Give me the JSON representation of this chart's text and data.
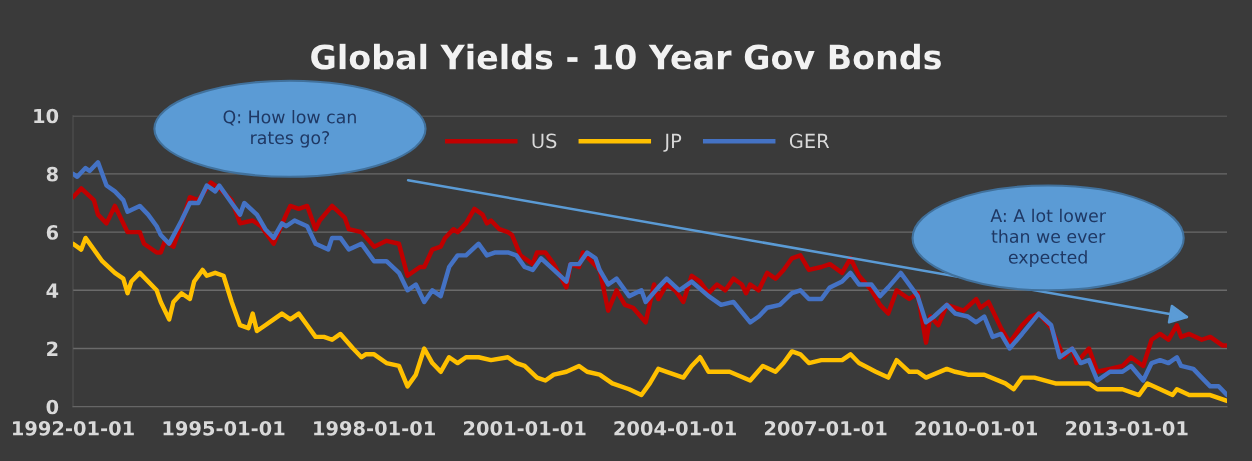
{
  "chart_data": {
    "type": "line",
    "title": "Global Yields - 10 Year Gov Bonds",
    "xlim": [
      "1992-01",
      "2015-01"
    ],
    "xticks": [
      "1992-01-01",
      "1995-01-01",
      "1998-01-01",
      "2001-01-01",
      "2004-01-01",
      "2007-01-01",
      "2010-01-01",
      "2013-01-01"
    ],
    "ylim": [
      0,
      10
    ],
    "yticks": [
      0,
      2,
      4,
      6,
      8,
      10
    ],
    "grid": "y",
    "legend": "top",
    "marker": "none",
    "line_style": "solid",
    "annotations": [
      "Q: How low can\nrates go?",
      "A: A lot lower\nthan we ever\nexpected"
    ],
    "series": [
      {
        "name": "US",
        "color": "#c00000",
        "x": [
          "1992-01",
          "1992-03",
          "1992-06",
          "1992-07",
          "1992-09",
          "1992-11",
          "1993-02",
          "1993-05",
          "1993-06",
          "1993-09",
          "1993-10",
          "1993-11",
          "1994-01",
          "1994-03",
          "1994-05",
          "1994-07",
          "1994-10",
          "1994-12",
          "1995-03",
          "1995-05",
          "1995-08",
          "1995-10",
          "1996-01",
          "1996-04",
          "1996-05",
          "1996-07",
          "1996-09",
          "1996-11",
          "1996-12",
          "1997-03",
          "1997-06",
          "1997-07",
          "1997-10",
          "1998-01",
          "1998-04",
          "1998-07",
          "1998-09",
          "1998-12",
          "1999-01",
          "1999-03",
          "1999-05",
          "1999-06",
          "1999-08",
          "1999-09",
          "1999-11",
          "2000-01",
          "2000-03",
          "2000-04",
          "2000-05",
          "2000-07",
          "2000-09",
          "2000-10",
          "2000-12",
          "2001-03",
          "2001-04",
          "2001-06",
          "2001-08",
          "2001-11",
          "2001-12",
          "2002-02",
          "2002-03",
          "2002-05",
          "2002-07",
          "2002-09",
          "2002-11",
          "2003-01",
          "2003-03",
          "2003-06",
          "2003-08",
          "2003-09",
          "2003-11",
          "2004-01",
          "2004-03",
          "2004-05",
          "2004-07",
          "2004-09",
          "2004-11",
          "2005-01",
          "2005-03",
          "2005-05",
          "2005-06",
          "2005-07",
          "2005-09",
          "2005-11",
          "2006-01",
          "2006-03",
          "2006-05",
          "2006-07",
          "2006-09",
          "2006-12",
          "2007-02",
          "2007-05",
          "2007-07",
          "2007-09",
          "2007-12",
          "2008-02",
          "2008-04",
          "2008-06",
          "2008-09",
          "2008-11",
          "2009-01",
          "2009-02",
          "2009-04",
          "2009-06",
          "2009-10",
          "2010-01",
          "2010-02",
          "2010-04",
          "2010-07",
          "2010-09",
          "2010-12",
          "2011-02",
          "2011-04",
          "2011-07",
          "2011-10",
          "2011-12",
          "2012-01",
          "2012-04",
          "2012-06",
          "2012-09",
          "2012-12",
          "2013-02",
          "2013-05",
          "2013-07",
          "2013-09",
          "2013-11",
          "2014-01",
          "2014-02",
          "2014-04",
          "2014-07",
          "2014-09",
          "2014-12",
          "2015-01"
        ],
        "values": [
          7.2,
          7.5,
          7.1,
          6.6,
          6.3,
          6.9,
          6.0,
          6.0,
          5.6,
          5.3,
          5.3,
          5.7,
          5.5,
          6.3,
          7.2,
          7.1,
          7.7,
          7.5,
          7.1,
          6.3,
          6.4,
          6.2,
          5.6,
          6.6,
          6.9,
          6.8,
          6.9,
          6.1,
          6.4,
          6.9,
          6.5,
          6.1,
          6.0,
          5.5,
          5.7,
          5.6,
          4.5,
          4.8,
          4.8,
          5.4,
          5.5,
          5.8,
          6.1,
          6.0,
          6.3,
          6.8,
          6.6,
          6.3,
          6.4,
          6.1,
          6.0,
          5.9,
          5.2,
          4.9,
          5.3,
          5.3,
          4.9,
          4.1,
          4.9,
          4.8,
          5.3,
          5.0,
          4.7,
          3.3,
          4.0,
          3.5,
          3.4,
          2.9,
          4.2,
          3.7,
          4.2,
          4.0,
          3.6,
          4.5,
          4.3,
          3.9,
          4.2,
          4.0,
          4.4,
          4.2,
          3.9,
          4.2,
          4.0,
          4.6,
          4.4,
          4.7,
          5.1,
          5.2,
          4.7,
          4.8,
          4.9,
          4.6,
          5.1,
          4.5,
          4.0,
          3.5,
          3.2,
          4.0,
          3.7,
          3.9,
          2.2,
          3.1,
          2.8,
          3.5,
          3.3,
          3.7,
          3.4,
          3.6,
          2.7,
          2.2,
          2.8,
          3.1,
          3.2,
          2.7,
          1.7,
          2.0,
          1.5,
          2.0,
          1.2,
          1.3,
          1.4,
          1.7,
          1.4,
          2.3,
          2.5,
          2.3,
          2.8,
          2.4,
          2.5,
          2.3,
          2.4,
          2.1,
          2.1
        ]
      },
      {
        "name": "JP",
        "color": "#ffc000",
        "x": [
          "1992-01",
          "1992-03",
          "1992-04",
          "1992-06",
          "1992-08",
          "1992-11",
          "1993-01",
          "1993-02",
          "1993-03",
          "1993-05",
          "1993-09",
          "1993-10",
          "1993-12",
          "1994-01",
          "1994-03",
          "1994-05",
          "1994-06",
          "1994-08",
          "1994-09",
          "1994-11",
          "1995-01",
          "1995-03",
          "1995-05",
          "1995-07",
          "1995-08",
          "1995-09",
          "1995-11",
          "1996-01",
          "1996-03",
          "1996-05",
          "1996-07",
          "1996-09",
          "1996-11",
          "1997-01",
          "1997-03",
          "1997-05",
          "1997-08",
          "1997-10",
          "1997-11",
          "1998-01",
          "1998-04",
          "1998-07",
          "1998-09",
          "1998-11",
          "1999-01",
          "1999-03",
          "1999-05",
          "1999-07",
          "1999-09",
          "1999-11",
          "2000-02",
          "2000-05",
          "2000-09",
          "2000-11",
          "2001-01",
          "2001-04",
          "2001-06",
          "2001-08",
          "2001-11",
          "2002-02",
          "2002-04",
          "2002-07",
          "2002-10",
          "2003-02",
          "2003-05",
          "2003-07",
          "2003-09",
          "2003-11",
          "2004-03",
          "2004-05",
          "2004-07",
          "2004-09",
          "2005-02",
          "2005-07",
          "2005-10",
          "2006-01",
          "2006-03",
          "2006-05",
          "2006-07",
          "2006-09",
          "2006-12",
          "2007-05",
          "2007-07",
          "2007-09",
          "2008-01",
          "2008-04",
          "2008-06",
          "2008-09",
          "2008-11",
          "2009-01",
          "2009-06",
          "2009-08",
          "2009-11",
          "2010-03",
          "2010-08",
          "2010-10",
          "2010-12",
          "2011-03",
          "2011-08",
          "2011-12",
          "2012-04",
          "2012-06",
          "2012-12",
          "2013-04",
          "2013-06",
          "2013-09",
          "2013-12",
          "2014-01",
          "2014-04",
          "2014-09",
          "2015-01"
        ],
        "values": [
          5.6,
          5.4,
          5.8,
          5.4,
          5.0,
          4.6,
          4.4,
          3.9,
          4.3,
          4.6,
          4.0,
          3.6,
          3.0,
          3.6,
          3.9,
          3.7,
          4.3,
          4.7,
          4.5,
          4.6,
          4.5,
          3.6,
          2.8,
          2.7,
          3.2,
          2.6,
          2.8,
          3.0,
          3.2,
          3.0,
          3.2,
          2.8,
          2.4,
          2.4,
          2.3,
          2.5,
          2.0,
          1.7,
          1.8,
          1.8,
          1.5,
          1.4,
          0.7,
          1.1,
          2.0,
          1.5,
          1.2,
          1.7,
          1.5,
          1.7,
          1.7,
          1.6,
          1.7,
          1.5,
          1.4,
          1.0,
          0.9,
          1.1,
          1.2,
          1.4,
          1.2,
          1.1,
          0.8,
          0.6,
          0.4,
          0.8,
          1.3,
          1.2,
          1.0,
          1.4,
          1.7,
          1.2,
          1.2,
          0.9,
          1.4,
          1.2,
          1.5,
          1.9,
          1.8,
          1.5,
          1.6,
          1.6,
          1.8,
          1.5,
          1.2,
          1.0,
          1.6,
          1.2,
          1.2,
          1.0,
          1.3,
          1.2,
          1.1,
          1.1,
          0.8,
          0.6,
          1.0,
          1.0,
          0.8,
          0.8,
          0.8,
          0.6,
          0.6,
          0.4,
          0.8,
          0.6,
          0.4,
          0.6,
          0.4,
          0.4,
          0.2
        ]
      },
      {
        "name": "GER",
        "color": "#4472c4",
        "x": [
          "1992-01",
          "1992-02",
          "1992-04",
          "1992-05",
          "1992-07",
          "1992-09",
          "1992-11",
          "1993-01",
          "1993-02",
          "1993-05",
          "1993-07",
          "1993-09",
          "1993-10",
          "1993-12",
          "1994-03",
          "1994-05",
          "1994-07",
          "1994-09",
          "1994-11",
          "1994-12",
          "1995-03",
          "1995-05",
          "1995-06",
          "1995-09",
          "1995-11",
          "1996-01",
          "1996-03",
          "1996-04",
          "1996-06",
          "1996-09",
          "1996-11",
          "1997-02",
          "1997-03",
          "1997-05",
          "1997-07",
          "1997-10",
          "1998-01",
          "1998-04",
          "1998-07",
          "1998-09",
          "1998-11",
          "1999-01",
          "1999-03",
          "1999-05",
          "1999-07",
          "1999-09",
          "1999-11",
          "2000-02",
          "2000-04",
          "2000-06",
          "2000-09",
          "2000-11",
          "2001-01",
          "2001-03",
          "2001-05",
          "2001-08",
          "2001-11",
          "2001-12",
          "2002-02",
          "2002-04",
          "2002-06",
          "2002-07",
          "2002-09",
          "2002-11",
          "2003-02",
          "2003-05",
          "2003-06",
          "2003-09",
          "2003-11",
          "2004-02",
          "2004-05",
          "2004-09",
          "2004-12",
          "2005-03",
          "2005-07",
          "2005-09",
          "2005-11",
          "2006-02",
          "2006-05",
          "2006-07",
          "2006-09",
          "2006-12",
          "2007-02",
          "2007-05",
          "2007-07",
          "2007-09",
          "2007-12",
          "2008-02",
          "2008-04",
          "2008-07",
          "2008-11",
          "2009-01",
          "2009-03",
          "2009-06",
          "2009-08",
          "2009-11",
          "2010-01",
          "2010-03",
          "2010-05",
          "2010-07",
          "2010-09",
          "2010-12",
          "2011-04",
          "2011-07",
          "2011-09",
          "2011-12",
          "2012-02",
          "2012-04",
          "2012-06",
          "2012-09",
          "2012-12",
          "2013-02",
          "2013-05",
          "2013-07",
          "2013-09",
          "2013-11",
          "2014-01",
          "2014-02",
          "2014-05",
          "2014-07",
          "2014-09",
          "2014-11",
          "2015-01"
        ],
        "values": [
          8.0,
          7.9,
          8.2,
          8.1,
          8.4,
          7.6,
          7.4,
          7.1,
          6.7,
          6.9,
          6.6,
          6.2,
          5.9,
          5.6,
          6.4,
          7.0,
          7.0,
          7.6,
          7.4,
          7.6,
          7.0,
          6.6,
          7.0,
          6.6,
          6.1,
          5.8,
          6.3,
          6.2,
          6.4,
          6.2,
          5.6,
          5.4,
          5.8,
          5.8,
          5.4,
          5.6,
          5.0,
          5.0,
          4.6,
          4.0,
          4.2,
          3.6,
          4.0,
          3.8,
          4.8,
          5.2,
          5.2,
          5.6,
          5.2,
          5.3,
          5.3,
          5.2,
          4.8,
          4.7,
          5.1,
          4.7,
          4.3,
          4.9,
          4.9,
          5.3,
          5.1,
          4.7,
          4.2,
          4.4,
          3.8,
          4.0,
          3.6,
          4.1,
          4.4,
          4.0,
          4.3,
          3.8,
          3.5,
          3.6,
          2.9,
          3.1,
          3.4,
          3.5,
          3.9,
          4.0,
          3.7,
          3.7,
          4.1,
          4.3,
          4.6,
          4.2,
          4.2,
          3.8,
          4.1,
          4.6,
          3.8,
          2.9,
          3.1,
          3.5,
          3.2,
          3.1,
          2.9,
          3.1,
          2.4,
          2.5,
          2.0,
          2.5,
          3.2,
          2.8,
          1.7,
          2.0,
          1.5,
          1.6,
          0.9,
          1.2,
          1.2,
          1.4,
          0.9,
          1.5,
          1.6,
          1.5,
          1.7,
          1.4,
          1.3,
          1.0,
          0.7,
          0.7,
          0.4
        ]
      }
    ]
  }
}
